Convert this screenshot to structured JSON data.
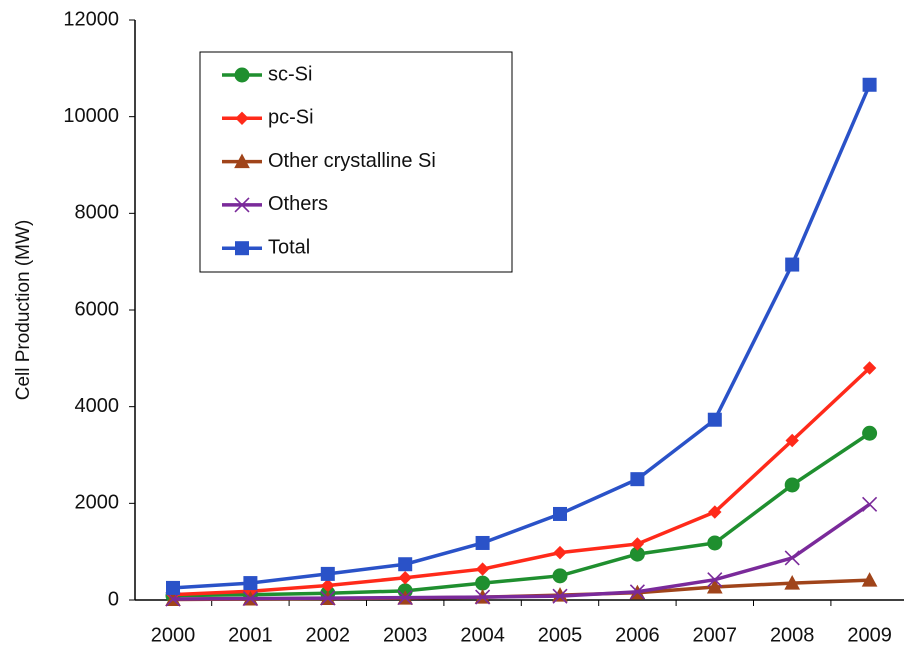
{
  "chart_data": {
    "type": "line",
    "ylabel": "Cell Production (MW)",
    "categories": [
      "2000",
      "2001",
      "2002",
      "2003",
      "2004",
      "2005",
      "2006",
      "2007",
      "2008",
      "2009"
    ],
    "series": [
      {
        "name": "sc-Si",
        "color": "#1f8f2f",
        "marker": "circle",
        "values": [
          90,
          110,
          140,
          190,
          350,
          500,
          950,
          1180,
          2380,
          3450
        ]
      },
      {
        "name": "pc-Si",
        "color": "#ff2a1a",
        "marker": "diamond",
        "values": [
          110,
          180,
          300,
          460,
          640,
          980,
          1160,
          1820,
          3300,
          4800
        ]
      },
      {
        "name": "Other crystalline Si",
        "color": "#a0441a",
        "marker": "triangle",
        "values": [
          10,
          20,
          30,
          40,
          60,
          100,
          150,
          270,
          350,
          410
        ]
      },
      {
        "name": "Others",
        "color": "#7a2a9a",
        "marker": "x",
        "values": [
          20,
          30,
          40,
          50,
          60,
          80,
          170,
          420,
          870,
          1980
        ]
      },
      {
        "name": "Total",
        "color": "#2a52c8",
        "marker": "square",
        "values": [
          250,
          350,
          540,
          740,
          1180,
          1780,
          2500,
          3730,
          6940,
          10660
        ]
      }
    ],
    "ylim": [
      0,
      12000
    ],
    "yticks": [
      0,
      2000,
      4000,
      6000,
      8000,
      10000,
      12000
    ],
    "grid": false,
    "legend": "upper left"
  }
}
